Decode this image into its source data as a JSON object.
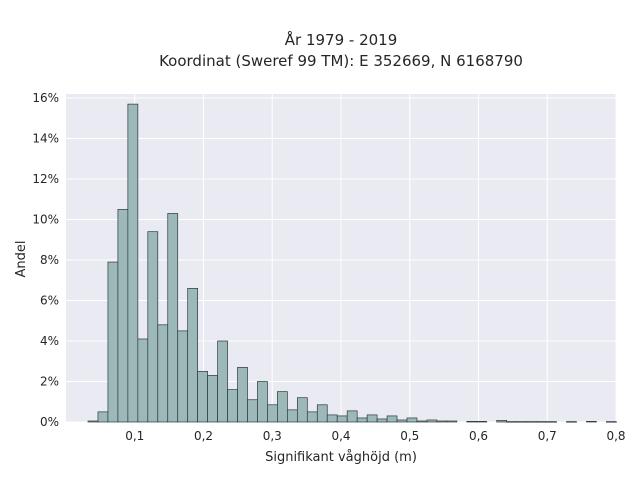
{
  "chart_data": {
    "type": "bar",
    "title": "År 1979 - 2019",
    "subtitle": "Koordinat (Sweref 99 TM): E 352669, N 6168790",
    "xlabel": "Signifikant våghöjd (m)",
    "ylabel": "Andel",
    "xlim": [
      0.0,
      0.8
    ],
    "ylim": [
      0,
      16.2
    ],
    "x_ticks": [
      0.1,
      0.2,
      0.3,
      0.4,
      0.5,
      0.6,
      0.7,
      0.8
    ],
    "x_tick_labels": [
      "0,1",
      "0,2",
      "0,3",
      "0,4",
      "0,5",
      "0,6",
      "0,7",
      "0,8"
    ],
    "y_ticks": [
      0,
      2,
      4,
      6,
      8,
      10,
      12,
      14,
      16
    ],
    "y_tick_labels": [
      "0%",
      "2%",
      "4%",
      "6%",
      "8%",
      "10%",
      "12%",
      "14%",
      "16%"
    ],
    "grid": true,
    "bin_width": 0.0145,
    "bin_start": 0.032,
    "values": [
      0.05,
      0.5,
      7.9,
      10.5,
      15.7,
      4.1,
      9.4,
      4.8,
      10.3,
      4.5,
      6.6,
      2.5,
      2.3,
      4.0,
      1.6,
      2.7,
      1.1,
      2.0,
      0.85,
      1.5,
      0.6,
      1.2,
      0.5,
      0.85,
      0.35,
      0.3,
      0.55,
      0.2,
      0.35,
      0.15,
      0.3,
      0.1,
      0.2,
      0.05,
      0.1,
      0.05,
      0.05,
      0.0,
      0.03,
      0.03,
      0.0,
      0.08,
      0.02,
      0.02,
      0.02,
      0.02,
      0.02,
      0.0,
      0.02,
      0.0,
      0.03,
      0.0,
      0.02,
      0.0
    ],
    "colors": {
      "bar_fill": "#9cb8b8",
      "bar_edge": "#2b3a3a",
      "plot_background": "#eaeaf2",
      "grid": "#ffffff"
    }
  }
}
